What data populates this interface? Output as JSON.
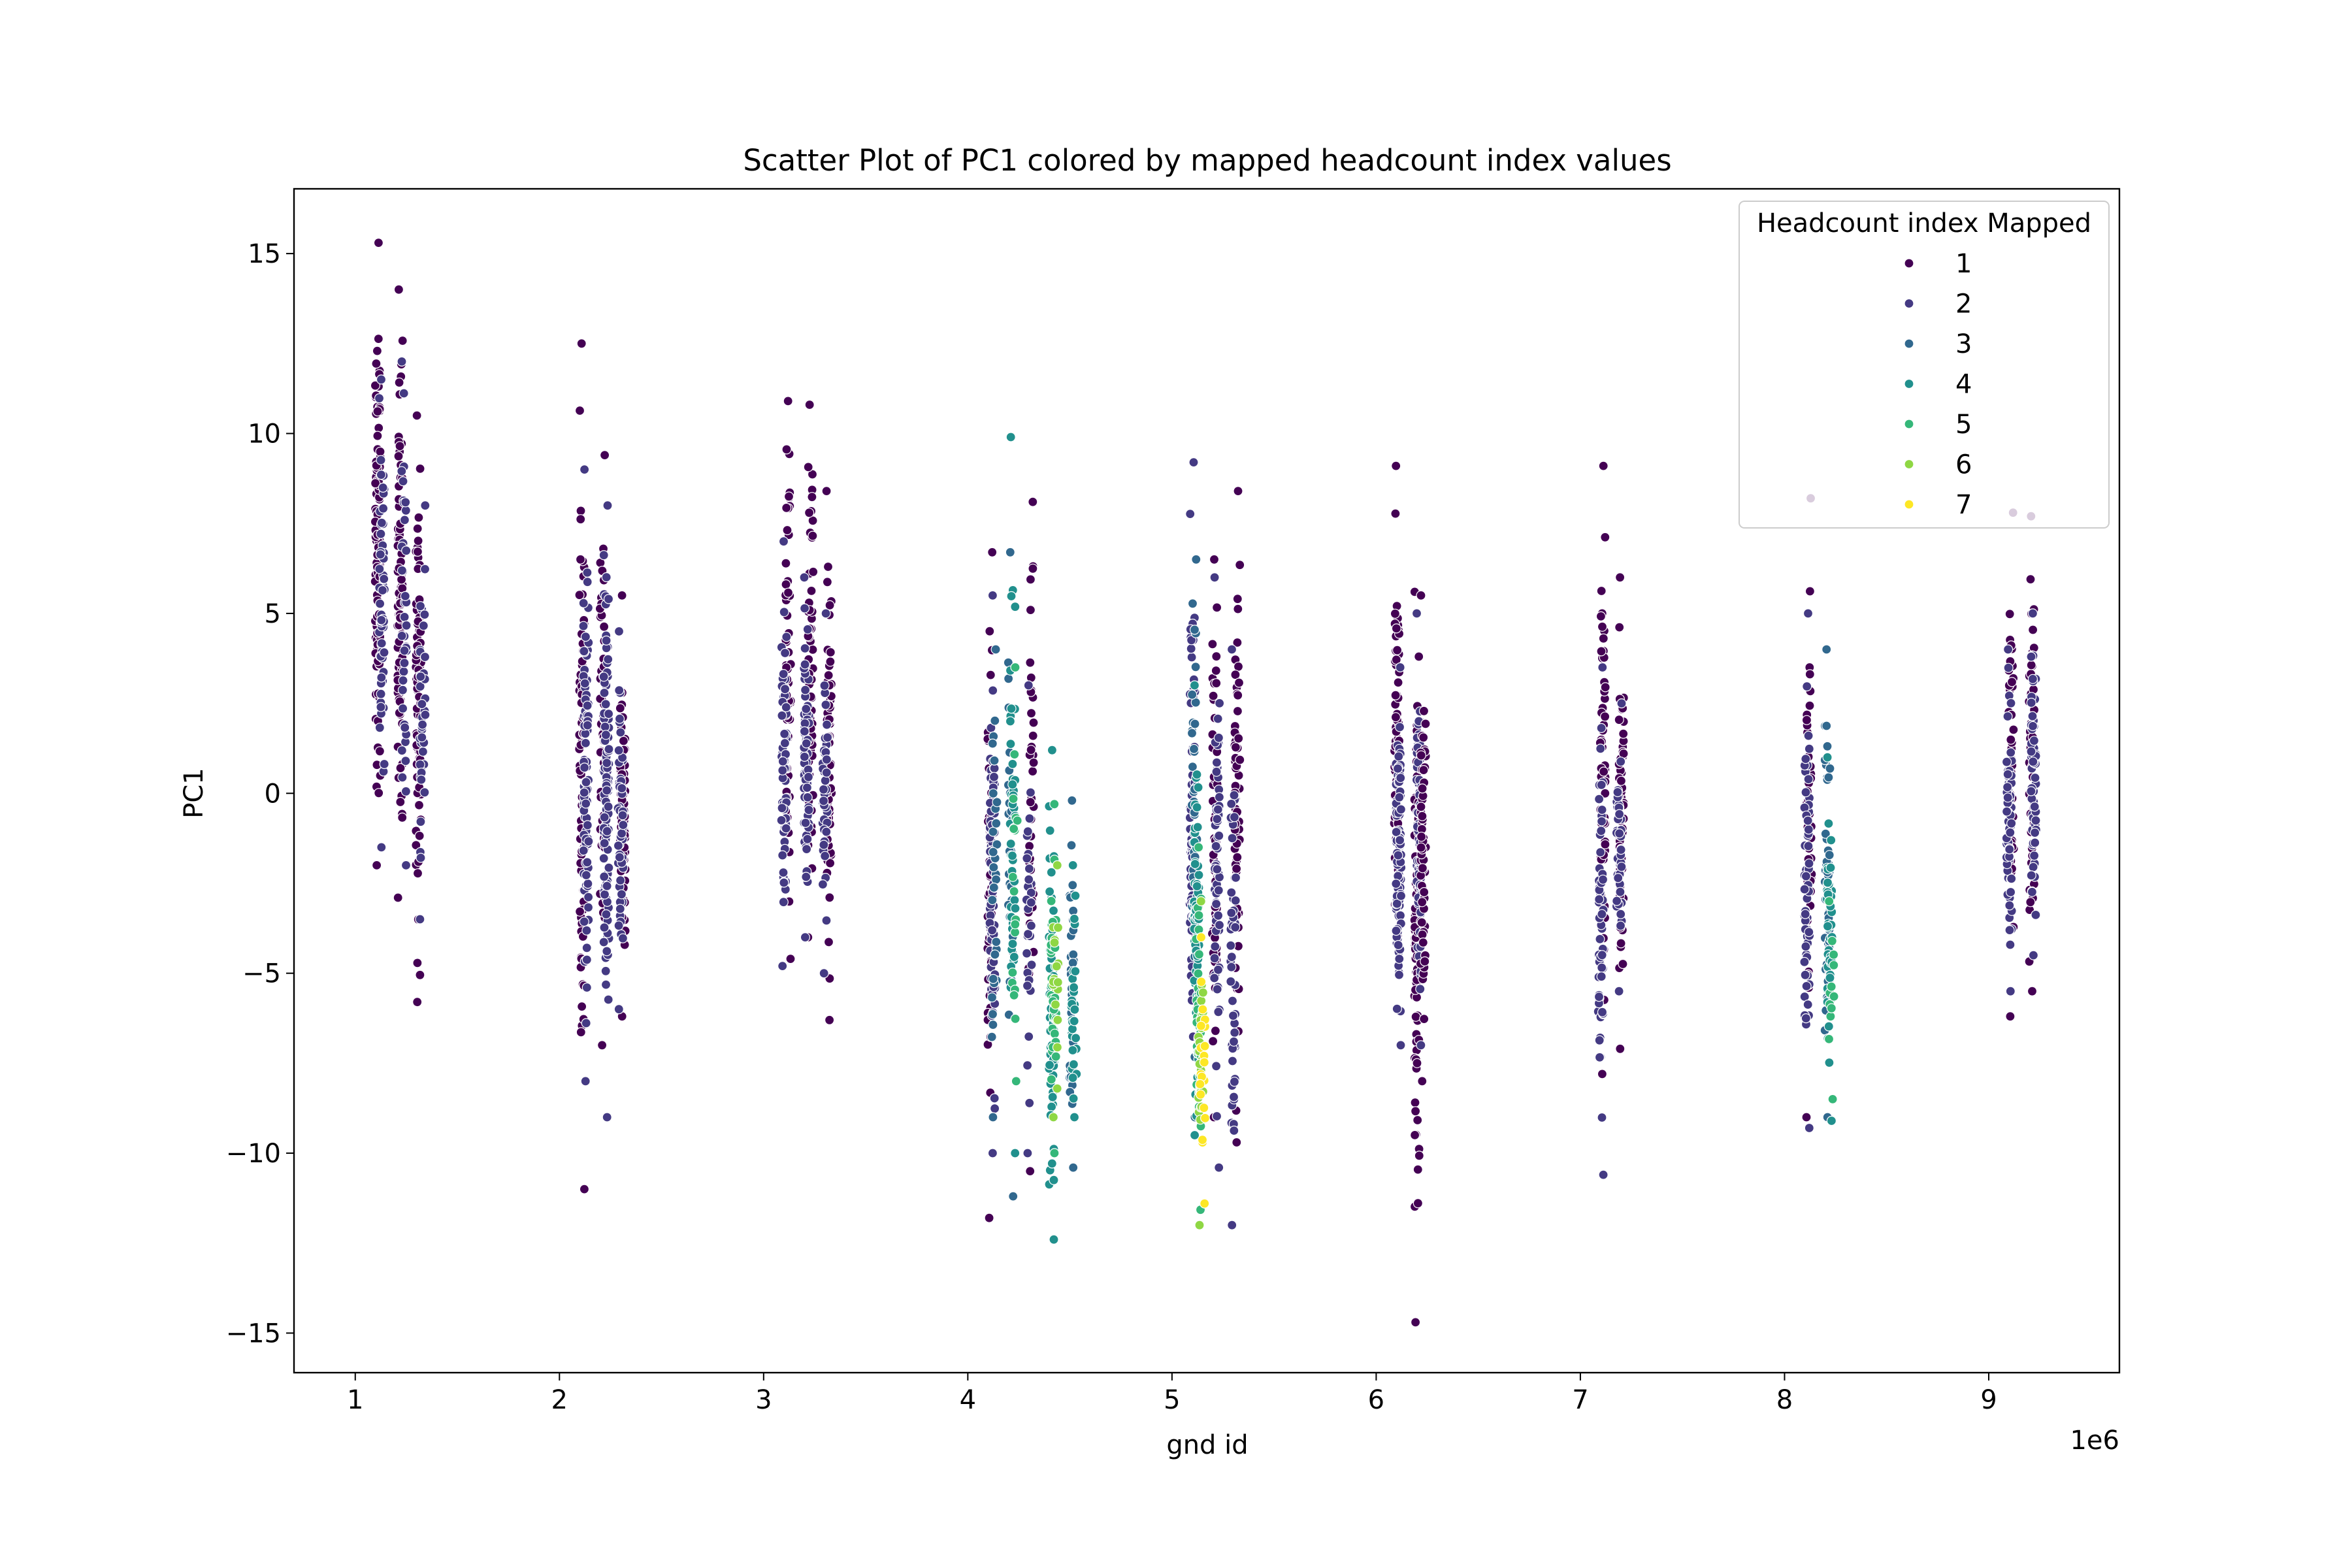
{
  "chart_data": {
    "type": "scatter",
    "title": "Scatter Plot of PC1 colored by mapped headcount index values",
    "xlabel": "gnd id",
    "ylabel": "PC1",
    "x_offset_label": "1e6",
    "xlim": [
      700000,
      9640000
    ],
    "ylim": [
      -16.1,
      16.8
    ],
    "xticks": [
      1,
      2,
      3,
      4,
      5,
      6,
      7,
      8,
      9
    ],
    "yticks": [
      15,
      10,
      5,
      0,
      -5,
      -10,
      -15
    ],
    "ytick_labels": [
      "15",
      "10",
      "5",
      "0",
      "−5",
      "−10",
      "−15"
    ],
    "grid": false,
    "legend": {
      "title": "Headcount index Mapped",
      "placement": "top-right",
      "entries": [
        "1",
        "2",
        "3",
        "4",
        "5",
        "6",
        "7"
      ]
    },
    "series_colors": {
      "1": "#440154",
      "2": "#443a83",
      "3": "#31688e",
      "4": "#21908d",
      "5": "#35b779",
      "6": "#8fd744",
      "7": "#fde725"
    },
    "groups": [
      {
        "region": 1,
        "strips": [
          {
            "x": 1110000,
            "series": "1",
            "ymin": -2.0,
            "ymax": 15.3,
            "n": 110
          },
          {
            "x": 1130000,
            "series": "2",
            "ymin": -1.5,
            "ymax": 11.5,
            "n": 60
          },
          {
            "x": 1220000,
            "series": "1",
            "ymin": -2.9,
            "ymax": 14.0,
            "n": 90
          },
          {
            "x": 1240000,
            "series": "2",
            "ymin": -2.0,
            "ymax": 12.0,
            "n": 40
          },
          {
            "x": 1310000,
            "series": "1",
            "ymin": -5.8,
            "ymax": 10.5,
            "n": 80
          },
          {
            "x": 1330000,
            "series": "2",
            "ymin": -3.5,
            "ymax": 8.0,
            "n": 40
          }
        ]
      },
      {
        "region": 2,
        "strips": [
          {
            "x": 2110000,
            "series": "1",
            "ymin": -11.0,
            "ymax": 12.5,
            "n": 70
          },
          {
            "x": 2130000,
            "series": "2",
            "ymin": -8.0,
            "ymax": 9.0,
            "n": 90
          },
          {
            "x": 2210000,
            "series": "1",
            "ymin": -7.0,
            "ymax": 9.4,
            "n": 60
          },
          {
            "x": 2230000,
            "series": "2",
            "ymin": -9.0,
            "ymax": 8.0,
            "n": 100
          },
          {
            "x": 2310000,
            "series": "1",
            "ymin": -6.2,
            "ymax": 5.5,
            "n": 70
          },
          {
            "x": 2300000,
            "series": "2",
            "ymin": -6.0,
            "ymax": 4.5,
            "n": 50
          }
        ]
      },
      {
        "region": 3,
        "strips": [
          {
            "x": 3120000,
            "series": "1",
            "ymin": -4.6,
            "ymax": 10.9,
            "n": 60
          },
          {
            "x": 3100000,
            "series": "2",
            "ymin": -4.8,
            "ymax": 7.0,
            "n": 70
          },
          {
            "x": 3230000,
            "series": "1",
            "ymin": -4.0,
            "ymax": 10.8,
            "n": 60
          },
          {
            "x": 3210000,
            "series": "2",
            "ymin": -4.0,
            "ymax": 6.0,
            "n": 70
          },
          {
            "x": 3320000,
            "series": "1",
            "ymin": -6.3,
            "ymax": 8.4,
            "n": 60
          },
          {
            "x": 3300000,
            "series": "2",
            "ymin": -5.0,
            "ymax": 5.0,
            "n": 40
          }
        ]
      },
      {
        "region": 4,
        "strips": [
          {
            "x": 4110000,
            "series": "1",
            "ymin": -11.8,
            "ymax": 6.7,
            "n": 50
          },
          {
            "x": 4120000,
            "series": "2",
            "ymin": -10.0,
            "ymax": 5.5,
            "n": 70
          },
          {
            "x": 4130000,
            "series": "3",
            "ymin": -9.0,
            "ymax": 4.0,
            "n": 30
          },
          {
            "x": 4210000,
            "series": "3",
            "ymin": -11.2,
            "ymax": 6.7,
            "n": 30
          },
          {
            "x": 4220000,
            "series": "4",
            "ymin": -10.0,
            "ymax": 9.9,
            "n": 40
          },
          {
            "x": 4230000,
            "series": "5",
            "ymin": -8.0,
            "ymax": 3.5,
            "n": 20
          },
          {
            "x": 4310000,
            "series": "1",
            "ymin": -10.5,
            "ymax": 8.1,
            "n": 40
          },
          {
            "x": 4300000,
            "series": "2",
            "ymin": -10.0,
            "ymax": 3.0,
            "n": 30
          },
          {
            "x": 4410000,
            "series": "4",
            "ymin": -12.4,
            "ymax": 1.2,
            "n": 50
          },
          {
            "x": 4420000,
            "series": "5",
            "ymin": -10.0,
            "ymax": -0.3,
            "n": 40
          },
          {
            "x": 4430000,
            "series": "6",
            "ymin": -9.0,
            "ymax": -2.0,
            "n": 20
          },
          {
            "x": 4510000,
            "series": "3",
            "ymin": -10.4,
            "ymax": -0.2,
            "n": 40
          },
          {
            "x": 4520000,
            "series": "4",
            "ymin": -9.0,
            "ymax": -2.0,
            "n": 30
          }
        ]
      },
      {
        "region": 5,
        "strips": [
          {
            "x": 5100000,
            "series": "2",
            "ymin": -9.5,
            "ymax": 9.2,
            "n": 70
          },
          {
            "x": 5110000,
            "series": "3",
            "ymin": -9.0,
            "ymax": 6.5,
            "n": 50
          },
          {
            "x": 5120000,
            "series": "4",
            "ymin": -9.5,
            "ymax": 3.0,
            "n": 60
          },
          {
            "x": 5130000,
            "series": "5",
            "ymin": -12.0,
            "ymax": -1.5,
            "n": 40
          },
          {
            "x": 5140000,
            "series": "6",
            "ymin": -12.0,
            "ymax": -3.0,
            "n": 25
          },
          {
            "x": 5150000,
            "series": "7",
            "ymin": -11.4,
            "ymax": -4.0,
            "n": 20
          },
          {
            "x": 5210000,
            "series": "1",
            "ymin": -9.0,
            "ymax": 6.5,
            "n": 60
          },
          {
            "x": 5220000,
            "series": "2",
            "ymin": -10.4,
            "ymax": 6.0,
            "n": 60
          },
          {
            "x": 5320000,
            "series": "1",
            "ymin": -9.7,
            "ymax": 8.4,
            "n": 60
          },
          {
            "x": 5300000,
            "series": "2",
            "ymin": -12.0,
            "ymax": 4.0,
            "n": 50
          }
        ]
      },
      {
        "region": 6,
        "strips": [
          {
            "x": 6100000,
            "series": "1",
            "ymin": -6.0,
            "ymax": 9.1,
            "n": 70
          },
          {
            "x": 6110000,
            "series": "2",
            "ymin": -7.0,
            "ymax": 3.5,
            "n": 100
          },
          {
            "x": 6200000,
            "series": "1",
            "ymin": -14.7,
            "ymax": 5.6,
            "n": 90
          },
          {
            "x": 6210000,
            "series": "2",
            "ymin": -7.0,
            "ymax": 5.0,
            "n": 80
          },
          {
            "x": 6230000,
            "series": "1",
            "ymin": -8.0,
            "ymax": 5.5,
            "n": 60
          }
        ]
      },
      {
        "region": 7,
        "strips": [
          {
            "x": 7110000,
            "series": "1",
            "ymin": -7.8,
            "ymax": 9.1,
            "n": 60
          },
          {
            "x": 7100000,
            "series": "2",
            "ymin": -10.6,
            "ymax": 3.5,
            "n": 60
          },
          {
            "x": 7200000,
            "series": "1",
            "ymin": -7.1,
            "ymax": 6.0,
            "n": 60
          },
          {
            "x": 7190000,
            "series": "2",
            "ymin": -5.5,
            "ymax": 2.5,
            "n": 40
          }
        ]
      },
      {
        "region": 8,
        "strips": [
          {
            "x": 8120000,
            "series": "1",
            "ymin": -9.0,
            "ymax": 8.2,
            "n": 40
          },
          {
            "x": 8110000,
            "series": "2",
            "ymin": -9.3,
            "ymax": 5.0,
            "n": 60
          },
          {
            "x": 8210000,
            "series": "3",
            "ymin": -9.0,
            "ymax": 4.0,
            "n": 60
          },
          {
            "x": 8220000,
            "series": "4",
            "ymin": -9.1,
            "ymax": 1.0,
            "n": 40
          },
          {
            "x": 8230000,
            "series": "5",
            "ymin": -8.5,
            "ymax": -3.0,
            "n": 12
          }
        ]
      },
      {
        "region": 9,
        "strips": [
          {
            "x": 9110000,
            "series": "1",
            "ymin": -6.2,
            "ymax": 7.8,
            "n": 50
          },
          {
            "x": 9100000,
            "series": "2",
            "ymin": -5.5,
            "ymax": 4.0,
            "n": 60
          },
          {
            "x": 9210000,
            "series": "1",
            "ymin": -5.5,
            "ymax": 7.7,
            "n": 50
          },
          {
            "x": 9220000,
            "series": "2",
            "ymin": -4.5,
            "ymax": 5.0,
            "n": 60
          }
        ]
      }
    ]
  }
}
